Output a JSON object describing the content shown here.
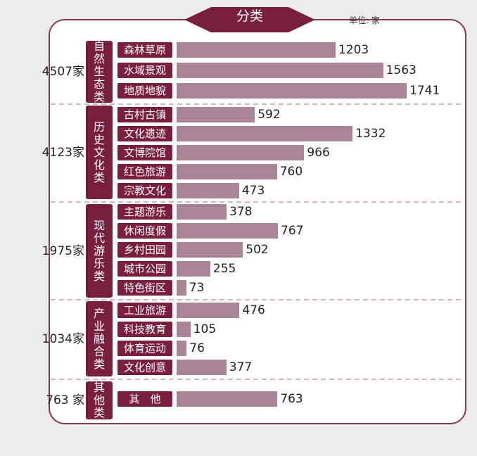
{
  "header": {
    "tab_title": "分类",
    "unit": "单位: 家"
  },
  "colors": {
    "accent": "#7a1e40",
    "bar": "#a98497",
    "frame": "#8a3a55"
  },
  "chart_data": {
    "type": "bar",
    "orientation": "horizontal",
    "groups": [
      {
        "name": "自然生态类",
        "total": "4507家",
        "items": [
          {
            "label": "森林草原",
            "value": 1203
          },
          {
            "label": "水域景观",
            "value": 1563
          },
          {
            "label": "地质地貌",
            "value": 1741
          }
        ]
      },
      {
        "name": "历史文化类",
        "total": "4123家",
        "items": [
          {
            "label": "古村古镇",
            "value": 592
          },
          {
            "label": "文化遗迹",
            "value": 1332
          },
          {
            "label": "文博院馆",
            "value": 966
          },
          {
            "label": "红色旅游",
            "value": 760
          },
          {
            "label": "宗教文化",
            "value": 473
          }
        ]
      },
      {
        "name": "现代游乐类",
        "total": "1975家",
        "items": [
          {
            "label": "主题游乐",
            "value": 378
          },
          {
            "label": "休闲度假",
            "value": 767
          },
          {
            "label": "乡村田园",
            "value": 502
          },
          {
            "label": "城市公园",
            "value": 255
          },
          {
            "label": "特色街区",
            "value": 73
          }
        ]
      },
      {
        "name": "产业融合类",
        "total": "1034家",
        "items": [
          {
            "label": "工业旅游",
            "value": 476
          },
          {
            "label": "科技教育",
            "value": 105
          },
          {
            "label": "体育运动",
            "value": 76
          },
          {
            "label": "文化创意",
            "value": 377
          }
        ]
      },
      {
        "name": "其他类",
        "total": "763 家",
        "items": [
          {
            "label": "其　他",
            "value": 763
          }
        ]
      }
    ]
  }
}
